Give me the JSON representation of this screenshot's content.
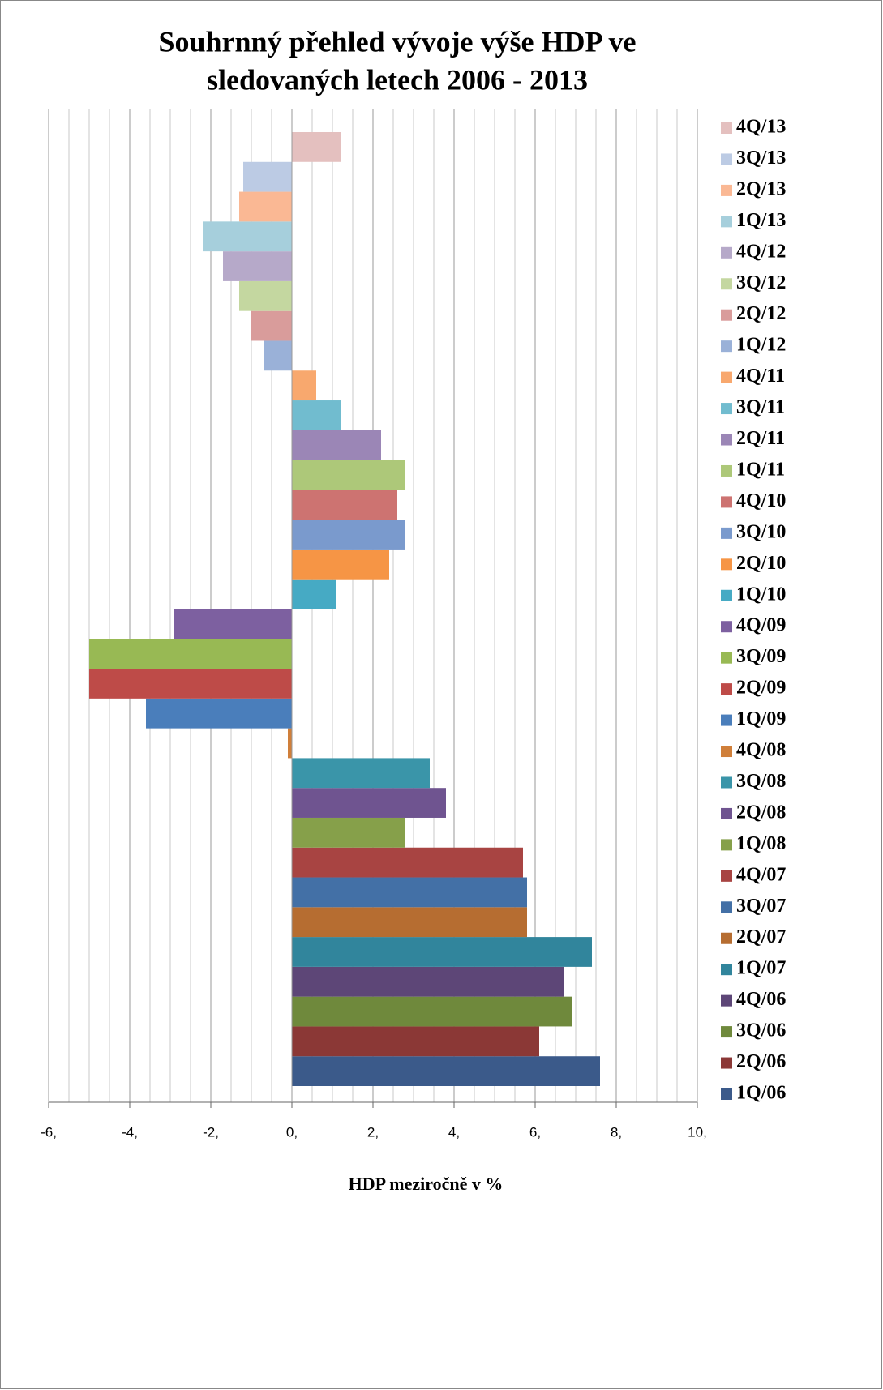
{
  "chart_data": {
    "type": "bar",
    "orientation": "horizontal",
    "title": [
      "Souhrnný přehled vývoje výše HDP ve",
      "sledovaných letech 2006 - 2013"
    ],
    "x_label": "HDP meziročně v %",
    "series": [
      {
        "name": "1Q/06",
        "color": "#3b5a8a",
        "values": [
          7.6
        ]
      },
      {
        "name": "2Q/06",
        "color": "#8b3836",
        "values": [
          6.1
        ]
      },
      {
        "name": "3Q/06",
        "color": "#6f893c",
        "values": [
          6.9
        ]
      },
      {
        "name": "4Q/06",
        "color": "#5d4677",
        "values": [
          6.7
        ]
      },
      {
        "name": "1Q/07",
        "color": "#31859c",
        "values": [
          7.4
        ]
      },
      {
        "name": "2Q/07",
        "color": "#b66d31",
        "values": [
          5.8
        ]
      },
      {
        "name": "3Q/07",
        "color": "#4370a6",
        "values": [
          5.8
        ]
      },
      {
        "name": "4Q/07",
        "color": "#a84442",
        "values": [
          5.7
        ]
      },
      {
        "name": "1Q/08",
        "color": "#86a04a",
        "values": [
          2.8
        ]
      },
      {
        "name": "2Q/08",
        "color": "#6f5490",
        "values": [
          3.8
        ]
      },
      {
        "name": "3Q/08",
        "color": "#3a95a9",
        "values": [
          3.4
        ]
      },
      {
        "name": "4Q/08",
        "color": "#d07f3a",
        "values": [
          -0.1
        ]
      },
      {
        "name": "1Q/09",
        "color": "#4a7ebb",
        "values": [
          -3.6
        ]
      },
      {
        "name": "2Q/09",
        "color": "#be4b48",
        "values": [
          -5.0
        ]
      },
      {
        "name": "3Q/09",
        "color": "#98b954",
        "values": [
          -5.0
        ]
      },
      {
        "name": "4Q/09",
        "color": "#7d60a0",
        "values": [
          -2.9
        ]
      },
      {
        "name": "1Q/10",
        "color": "#46aac4",
        "values": [
          1.1
        ]
      },
      {
        "name": "2Q/10",
        "color": "#f69545",
        "values": [
          2.4
        ]
      },
      {
        "name": "3Q/10",
        "color": "#7a9acd",
        "values": [
          2.8
        ]
      },
      {
        "name": "4Q/10",
        "color": "#cd7371",
        "values": [
          2.6
        ]
      },
      {
        "name": "1Q/11",
        "color": "#adc879",
        "values": [
          2.8
        ]
      },
      {
        "name": "2Q/11",
        "color": "#9b86b6",
        "values": [
          2.2
        ]
      },
      {
        "name": "3Q/11",
        "color": "#71bccf",
        "values": [
          1.2
        ]
      },
      {
        "name": "4Q/11",
        "color": "#f8a86e",
        "values": [
          0.6
        ]
      },
      {
        "name": "1Q/12",
        "color": "#9ab1d8",
        "values": [
          -0.7
        ]
      },
      {
        "name": "2Q/12",
        "color": "#d99c9b",
        "values": [
          -1.0
        ]
      },
      {
        "name": "3Q/12",
        "color": "#c4d7a0",
        "values": [
          -1.3
        ]
      },
      {
        "name": "4Q/12",
        "color": "#b6a9c9",
        "values": [
          -1.7
        ]
      },
      {
        "name": "1Q/13",
        "color": "#a6cfdc",
        "values": [
          -2.2
        ]
      },
      {
        "name": "2Q/13",
        "color": "#fab894",
        "values": [
          -1.3
        ]
      },
      {
        "name": "3Q/13",
        "color": "#bccbe4",
        "values": [
          -1.2
        ]
      },
      {
        "name": "4Q/13",
        "color": "#e4c0bf",
        "values": [
          1.2
        ]
      }
    ],
    "xlim": [
      -6,
      10
    ],
    "xticks": [
      {
        "value": -6,
        "label": "-6,"
      },
      {
        "value": -4,
        "label": "-4,"
      },
      {
        "value": -2,
        "label": "-2,"
      },
      {
        "value": 0,
        "label": "0,"
      },
      {
        "value": 2,
        "label": "2,"
      },
      {
        "value": 4,
        "label": "4,"
      },
      {
        "value": 6,
        "label": "6,"
      },
      {
        "value": 8,
        "label": "8,"
      },
      {
        "value": 10,
        "label": "10,"
      }
    ],
    "minor_grid": 0.5,
    "grid": true,
    "legend": "right"
  }
}
